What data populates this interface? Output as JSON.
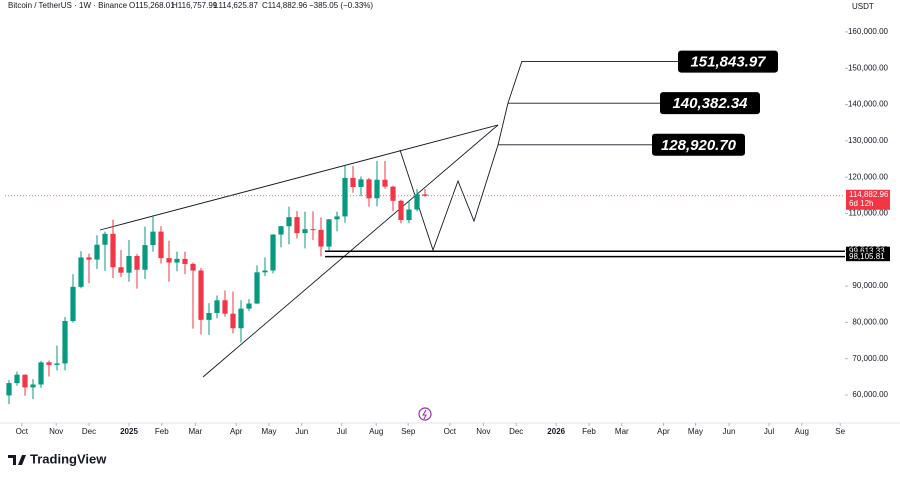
{
  "chart_data": {
    "type": "candlestick",
    "title": "Bitcoin / TetherUS · 1W · Binance",
    "ohlc_text": [
      "O115,268.01",
      "H116,757.99",
      "L114,625.87",
      "C114,882.96"
    ],
    "change_text": "−385.05 (−0.33%)",
    "currency": "USDT",
    "brand": "TradingView",
    "up_color": "#089981",
    "down_color": "#f23645",
    "grid": false,
    "open": [
      59900,
      63300,
      65600,
      62100,
      62900,
      69000,
      68300,
      68700,
      80400,
      89800,
      97900,
      97300,
      101400,
      104400,
      95200,
      93700,
      98300,
      94500,
      101300,
      105000,
      97700,
      96500,
      97500,
      96100,
      94300,
      80700,
      82600,
      86100,
      82400,
      78400,
      83800,
      85200,
      93800,
      94300,
      104200,
      106500,
      109000,
      104600,
      105700,
      105500,
      100900,
      108400,
      109200,
      119800,
      117300,
      119400,
      114200,
      119300,
      117400,
      113500,
      108200,
      111100,
      115268.01
    ],
    "high": [
      64100,
      66500,
      65700,
      64400,
      69400,
      69500,
      73600,
      81500,
      93300,
      99600,
      98900,
      104000,
      105000,
      108300,
      99900,
      102700,
      98800,
      106400,
      109600,
      106500,
      102500,
      99500,
      99500,
      96500,
      95000,
      85300,
      87400,
      88800,
      88500,
      86100,
      86400,
      95700,
      97900,
      104300,
      106600,
      111900,
      110700,
      110500,
      110600,
      108900,
      108500,
      110500,
      123200,
      123100,
      120200,
      119800,
      124500,
      124500,
      117600,
      113800,
      113400,
      116800,
      116757.99
    ],
    "low": [
      57500,
      62600,
      59800,
      58900,
      62000,
      65100,
      66800,
      66800,
      79900,
      89400,
      90800,
      94700,
      94200,
      92200,
      92500,
      91200,
      89300,
      92000,
      99500,
      96200,
      91200,
      94100,
      93300,
      78300,
      76700,
      76600,
      81100,
      81600,
      77000,
      74500,
      83100,
      85100,
      92800,
      93500,
      100700,
      101500,
      103100,
      100400,
      102700,
      98200,
      99600,
      105100,
      107500,
      115700,
      114700,
      111900,
      112000,
      116800,
      110700,
      107300,
      107300,
      110600,
      114625.87
    ],
    "close": [
      63300,
      65600,
      62100,
      62900,
      69000,
      68300,
      68700,
      80400,
      89800,
      97900,
      97300,
      101400,
      104400,
      95200,
      93700,
      98300,
      94500,
      101300,
      105000,
      97700,
      96500,
      97500,
      96100,
      94300,
      80700,
      82600,
      86100,
      82400,
      78400,
      83800,
      85200,
      93800,
      94300,
      104200,
      106500,
      109000,
      104600,
      105700,
      105500,
      100900,
      108400,
      109200,
      119800,
      117300,
      119400,
      114200,
      119300,
      117400,
      113500,
      108200,
      111100,
      115300,
      114882.96
    ],
    "xlim": [
      -0.5,
      104.5
    ],
    "xticks": [
      {
        "value": 1.6,
        "label": "Oct"
      },
      {
        "value": 5.9,
        "label": "Nov"
      },
      {
        "value": 10,
        "label": "Dec"
      },
      {
        "value": 15,
        "label": "2025"
      },
      {
        "value": 19.1,
        "label": "Feb"
      },
      {
        "value": 23.3,
        "label": "Mar"
      },
      {
        "value": 28.4,
        "label": "Apr"
      },
      {
        "value": 32.5,
        "label": "May"
      },
      {
        "value": 36.6,
        "label": "Jun"
      },
      {
        "value": 41.6,
        "label": "Jul"
      },
      {
        "value": 45.9,
        "label": "Aug"
      },
      {
        "value": 49.9,
        "label": "Sep"
      },
      {
        "value": 55.1,
        "label": "Oct"
      },
      {
        "value": 59.3,
        "label": "Nov"
      },
      {
        "value": 63.4,
        "label": "Dec"
      },
      {
        "value": 68.4,
        "label": "2026"
      },
      {
        "value": 72.5,
        "label": "Feb"
      },
      {
        "value": 76.6,
        "label": "Mar"
      },
      {
        "value": 81.8,
        "label": "Apr"
      },
      {
        "value": 85.8,
        "label": "May"
      },
      {
        "value": 90,
        "label": "Jun"
      },
      {
        "value": 95,
        "label": "Jul"
      },
      {
        "value": 99.1,
        "label": "Aug"
      },
      {
        "value": 103.9,
        "label": "Se"
      }
    ],
    "ylim": [
      52300,
      168800
    ],
    "yticks": [
      {
        "value": 60000,
        "label": "60,000.00"
      },
      {
        "value": 70000,
        "label": "70,000.00"
      },
      {
        "value": 80000,
        "label": "80,000.00"
      },
      {
        "value": 90000,
        "label": "90,000.00"
      },
      {
        "value": 100000,
        "label": "100,000.00"
      },
      {
        "value": 110000,
        "label": "110,000.00"
      },
      {
        "value": 120000,
        "label": "120,000.00"
      },
      {
        "value": 130000,
        "label": "130,000.00"
      },
      {
        "value": 140000,
        "label": "140,000.00"
      },
      {
        "value": 150000,
        "label": "150,000.00"
      },
      {
        "value": 160000,
        "label": "160,000.00"
      }
    ],
    "last_price": {
      "value": 114882.96,
      "label": "114,882.96",
      "countdown": "6d 12h"
    },
    "levels": [
      {
        "value": 99613.33,
        "label": "99,613.33"
      },
      {
        "value": 98105.81,
        "label": "98,105.81"
      }
    ],
    "targets": [
      {
        "value": 151843.97,
        "label": "151,843.97"
      },
      {
        "value": 140382.34,
        "label": "140,382.34"
      },
      {
        "value": 128920.7,
        "label": "128,920.70"
      }
    ]
  }
}
